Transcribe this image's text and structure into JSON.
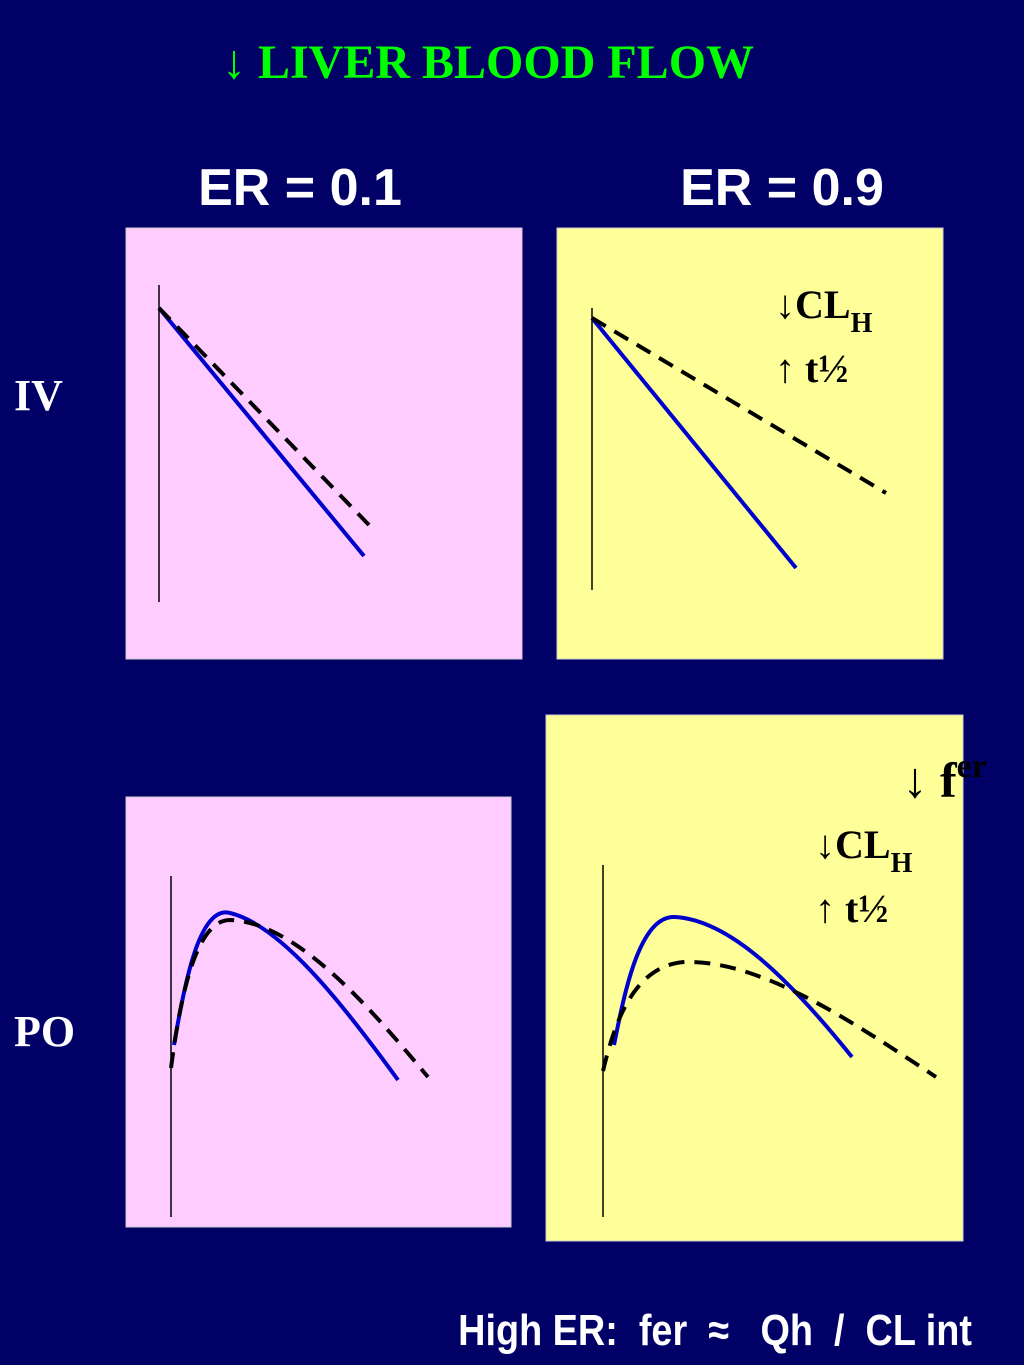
{
  "header": {
    "title": "↓ LIVER BLOOD FLOW"
  },
  "columns": [
    "ER = 0.1",
    "ER = 0.9"
  ],
  "rows": [
    "IV",
    "PO"
  ],
  "panels": {
    "iv_high_er": {
      "annotations": [
        {
          "text": "↓CL",
          "sub": "H"
        },
        {
          "text": "↑ t½"
        }
      ]
    },
    "po_high_er": {
      "annotations": [
        {
          "text": "↓ f",
          "sup": "er"
        },
        {
          "text": "↓CL",
          "sub": "H"
        },
        {
          "text": "↑ t½"
        }
      ]
    }
  },
  "footer": "High ER:  fer  ≈   Qh  /  CL int"
}
